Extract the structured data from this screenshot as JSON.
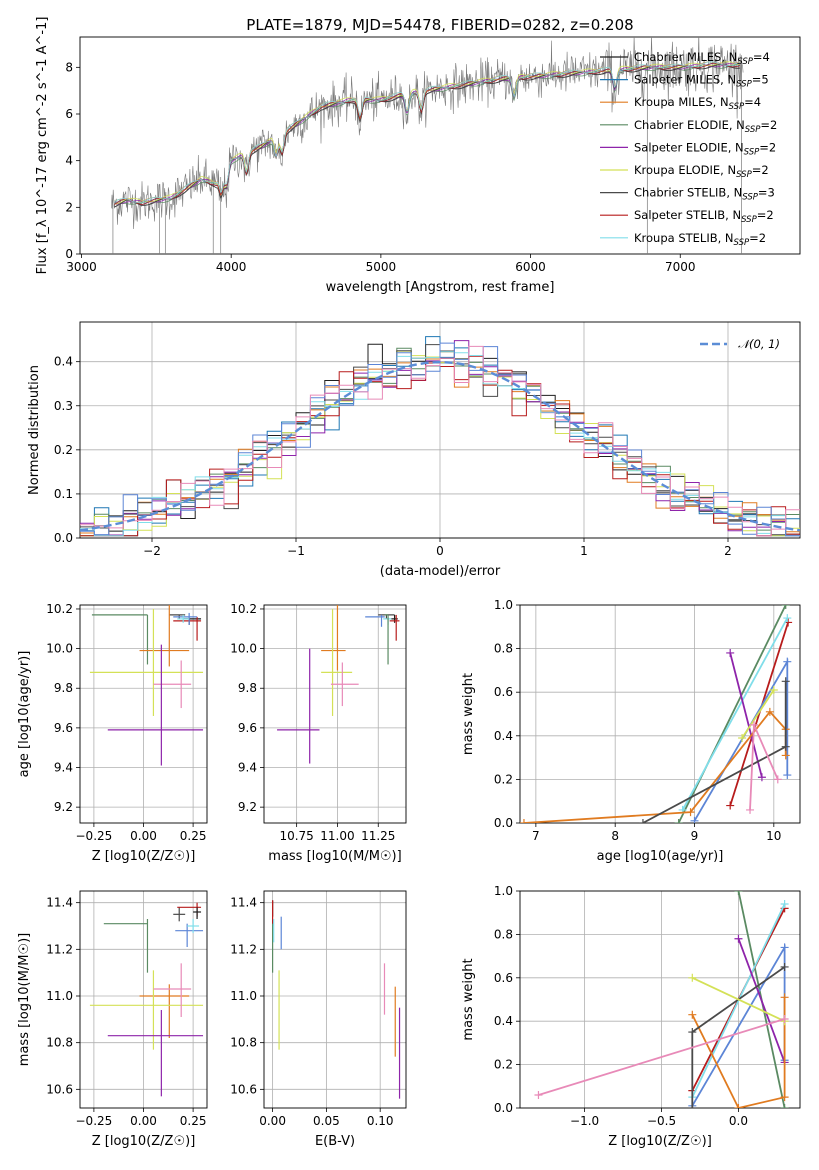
{
  "figure_title": "PLATE=1879, MJD=54478, FIBERID=0282, z=0.208",
  "colors": {
    "Chabrier MILES": "#1f1f1f",
    "Salpeter MILES": "#1f77b4",
    "Kroupa MILES": "#e07b20",
    "Chabrier ELODIE": "#5a8a62",
    "Salpeter ELODIE": "#8e24aa",
    "Kroupa ELODIE": "#d4e157",
    "Chabrier STELIB": "#4a4a4a",
    "Salpeter STELIB": "#b71c1c",
    "Kroupa STELIB": "#80deea",
    "extra1": "#5c85d6",
    "extra2": "#e88ab8",
    "normal": "#5b8dd6"
  },
  "chart_data": [
    {
      "type": "line",
      "id": "spectrum",
      "title": "PLATE=1879, MJD=54478, FIBERID=0282, z=0.208",
      "xlabel": "wavelength [Angstrom, rest frame]",
      "ylabel": "Flux [f_λ 10^-17 erg cm^-2 s^-1 A^-1]",
      "xlim": [
        2990,
        7800
      ],
      "ylim": [
        0,
        9.3
      ],
      "xticks": [
        3000,
        4000,
        5000,
        6000,
        7000
      ],
      "yticks": [
        0,
        2,
        4,
        6,
        8
      ],
      "continuum": {
        "x": [
          3200,
          3300,
          3400,
          3600,
          3800,
          3900,
          4000,
          4200,
          4400,
          4600,
          4800,
          5000,
          5200,
          5400,
          5600,
          5800,
          6000,
          6200,
          6400,
          6600,
          6800,
          7000,
          7200,
          7400
        ],
        "y": [
          2.1,
          2.3,
          2.2,
          2.4,
          3.2,
          3.0,
          4.0,
          4.6,
          5.4,
          6.3,
          6.6,
          6.6,
          6.9,
          7.1,
          7.3,
          7.5,
          7.6,
          7.7,
          7.8,
          7.9,
          8.0,
          8.0,
          8.1,
          8.1
        ]
      },
      "legend": [
        {
          "name": "Chabrier MILES, N_SSP=4",
          "color": "#1f1f1f"
        },
        {
          "name": "Salpeter MILES, N_SSP=5",
          "color": "#1f77b4"
        },
        {
          "name": "Kroupa MILES, N_SSP=4",
          "color": "#e07b20"
        },
        {
          "name": "Chabrier ELODIE, N_SSP=2",
          "color": "#5a8a62"
        },
        {
          "name": "Salpeter ELODIE, N_SSP=2",
          "color": "#8e24aa"
        },
        {
          "name": "Kroupa ELODIE, N_SSP=2",
          "color": "#d4e157"
        },
        {
          "name": "Chabrier STELIB, N_SSP=3",
          "color": "#4a4a4a"
        },
        {
          "name": "Salpeter STELIB, N_SSP=2",
          "color": "#b71c1c"
        },
        {
          "name": "Kroupa STELIB, N_SSP=2",
          "color": "#80deea"
        }
      ],
      "legend_placement": "right"
    },
    {
      "type": "bar",
      "id": "residual_hist",
      "xlabel": "(data-model)/error",
      "ylabel": "Normed distribution",
      "xlim": [
        -2.5,
        2.5
      ],
      "ylim": [
        0,
        0.49
      ],
      "xticks": [
        -2,
        -1,
        0,
        1,
        2
      ],
      "yticks": [
        0.0,
        0.1,
        0.2,
        0.3,
        0.4
      ],
      "grid": true,
      "bin_width": 0.1,
      "legend": [
        {
          "name": "N(0,1)",
          "style": "dashed",
          "color": "#5b8dd6"
        }
      ],
      "legend_placement": "top-right"
    },
    {
      "type": "scatter",
      "id": "age_vs_Z",
      "xlabel": "Z [log10(Z/Z☉)]",
      "ylabel": "age [log10(age/yr)]",
      "xlim": [
        -0.32,
        0.32
      ],
      "ylim": [
        9.12,
        10.22
      ],
      "xticks": [
        -0.25,
        0.0,
        0.25
      ],
      "yticks": [
        9.2,
        9.4,
        9.6,
        9.8,
        10.0,
        10.2
      ],
      "grid": true,
      "points": [
        {
          "x": 0.18,
          "y": 10.17,
          "xerr": [
            0.05,
            0.03
          ],
          "yerr": [
            0.02,
            0.0
          ],
          "color": "#4a4a4a"
        },
        {
          "x": 0.23,
          "y": 10.15,
          "xerr": [
            0.03,
            0.06
          ],
          "yerr": [
            0.03,
            0.0
          ],
          "color": "#1f1f1f"
        },
        {
          "x": 0.27,
          "y": 10.14,
          "xerr": [
            0.12,
            0.02
          ],
          "yerr": [
            0.1,
            0.02
          ],
          "color": "#b71c1c"
        },
        {
          "x": 0.23,
          "y": 10.16,
          "xerr": [
            0.08,
            0.04
          ],
          "yerr": [
            0.04,
            0.02
          ],
          "color": "#5c85d6"
        },
        {
          "x": 0.2,
          "y": 10.15,
          "xerr": [
            0.03,
            0.03
          ],
          "yerr": [
            0.02,
            0.02
          ],
          "color": "#80deea"
        },
        {
          "x": 0.02,
          "y": 10.17,
          "xerr": [
            0.28,
            0.0
          ],
          "yerr": [
            0.25,
            0.0
          ],
          "color": "#5a8a62"
        },
        {
          "x": 0.13,
          "y": 9.99,
          "xerr": [
            0.15,
            0.1
          ],
          "yerr": [
            0.08,
            0.28
          ],
          "color": "#e07b20"
        },
        {
          "x": 0.05,
          "y": 9.88,
          "xerr": [
            0.32,
            0.25
          ],
          "yerr": [
            0.22,
            0.32
          ],
          "color": "#d4e157"
        },
        {
          "x": 0.19,
          "y": 9.82,
          "xerr": [
            0.14,
            0.05
          ],
          "yerr": [
            0.12,
            0.12
          ],
          "color": "#e88ab8"
        },
        {
          "x": 0.09,
          "y": 9.59,
          "xerr": [
            0.27,
            0.21
          ],
          "yerr": [
            0.18,
            0.43
          ],
          "color": "#8e24aa"
        }
      ]
    },
    {
      "type": "scatter",
      "id": "age_vs_mass",
      "xlabel": "mass [log10(M/M☉)]",
      "ylabel": "",
      "xlim": [
        10.55,
        11.42
      ],
      "ylim": [
        9.12,
        10.22
      ],
      "xticks": [
        10.75,
        11.0,
        11.25
      ],
      "yticks": [
        9.2,
        9.4,
        9.6,
        9.8,
        10.0,
        10.2
      ],
      "grid": true,
      "points": [
        {
          "x": 11.3,
          "y": 10.17,
          "xerr": [
            0.05,
            0.05
          ],
          "yerr": [
            0.02,
            0.0
          ],
          "color": "#4a4a4a"
        },
        {
          "x": 11.35,
          "y": 10.15,
          "xerr": [
            0.02,
            0.02
          ],
          "yerr": [
            0.02,
            0.02
          ],
          "color": "#1f1f1f"
        },
        {
          "x": 11.36,
          "y": 10.14,
          "xerr": [
            0.04,
            0.02
          ],
          "yerr": [
            0.1,
            0.03
          ],
          "color": "#b71c1c"
        },
        {
          "x": 11.27,
          "y": 10.16,
          "xerr": [
            0.1,
            0.02
          ],
          "yerr": [
            0.05,
            0.01
          ],
          "color": "#5c85d6"
        },
        {
          "x": 11.31,
          "y": 10.15,
          "xerr": [
            0.03,
            0.02
          ],
          "yerr": [
            0.03,
            0.01
          ],
          "color": "#80deea"
        },
        {
          "x": 11.31,
          "y": 10.17,
          "xerr": [
            0.02,
            0.0
          ],
          "yerr": [
            0.25,
            0.0
          ],
          "color": "#5a8a62"
        },
        {
          "x": 11.0,
          "y": 9.99,
          "xerr": [
            0.1,
            0.05
          ],
          "yerr": [
            0.1,
            0.28
          ],
          "color": "#e07b20"
        },
        {
          "x": 10.97,
          "y": 9.88,
          "xerr": [
            0.07,
            0.12
          ],
          "yerr": [
            0.22,
            0.32
          ],
          "color": "#d4e157"
        },
        {
          "x": 11.03,
          "y": 9.82,
          "xerr": [
            0.07,
            0.1
          ],
          "yerr": [
            0.11,
            0.11
          ],
          "color": "#e88ab8"
        },
        {
          "x": 10.83,
          "y": 9.59,
          "xerr": [
            0.2,
            0.06
          ],
          "yerr": [
            0.17,
            0.41
          ],
          "color": "#8e24aa"
        }
      ]
    },
    {
      "type": "line",
      "id": "massweight_vs_age",
      "xlabel": "age [log10(age/yr)]",
      "ylabel": "mass weight",
      "xlim": [
        6.8,
        10.33
      ],
      "ylim": [
        0,
        1
      ],
      "xticks": [
        7,
        8,
        9,
        10
      ],
      "yticks": [
        0.0,
        0.2,
        0.4,
        0.6,
        0.8,
        1.0
      ],
      "grid": true,
      "series": [
        {
          "color": "#5a8a62",
          "x": [
            8.8,
            10.15
          ],
          "y": [
            0.0,
            1.0
          ]
        },
        {
          "color": "#b71c1c",
          "x": [
            9.45,
            10.18
          ],
          "y": [
            0.08,
            0.92
          ]
        },
        {
          "color": "#80deea",
          "x": [
            8.85,
            10.17
          ],
          "y": [
            0.06,
            0.94
          ]
        },
        {
          "color": "#5c85d6",
          "x": [
            9.0,
            10.17,
            10.17
          ],
          "y": [
            0.01,
            0.74,
            0.22
          ]
        },
        {
          "color": "#8e24aa",
          "x": [
            9.45,
            9.85
          ],
          "y": [
            0.78,
            0.21
          ]
        },
        {
          "color": "#e07b20",
          "x": [
            6.85,
            8.95,
            9.95,
            10.15,
            10.15
          ],
          "y": [
            0.0,
            0.05,
            0.51,
            0.43,
            0.31
          ]
        },
        {
          "color": "#4a4a4a",
          "x": [
            8.35,
            10.15,
            10.15
          ],
          "y": [
            0.0,
            0.35,
            0.65
          ]
        },
        {
          "color": "#d4e157",
          "x": [
            9.6,
            10.0
          ],
          "y": [
            0.39,
            0.61
          ]
        },
        {
          "color": "#e88ab8",
          "x": [
            9.7,
            9.75,
            10.05
          ],
          "y": [
            0.06,
            0.45,
            0.2
          ]
        }
      ]
    },
    {
      "type": "scatter",
      "id": "mass_vs_Z",
      "xlabel": "Z [log10(Z/Z☉)]",
      "ylabel": "mass [log10(M/M☉)]",
      "xlim": [
        -0.32,
        0.32
      ],
      "ylim": [
        10.52,
        11.45
      ],
      "xticks": [
        -0.25,
        0.0,
        0.25
      ],
      "yticks": [
        10.6,
        10.8,
        11.0,
        11.2,
        11.4
      ],
      "grid": true,
      "points": [
        {
          "x": 0.18,
          "y": 11.35,
          "xerr": [
            0.03,
            0.03
          ],
          "yerr": [
            0.03,
            0.03
          ],
          "color": "#4a4a4a"
        },
        {
          "x": 0.27,
          "y": 11.38,
          "xerr": [
            0.1,
            0.02
          ],
          "yerr": [
            0.04,
            0.02
          ],
          "color": "#b71c1c"
        },
        {
          "x": 0.27,
          "y": 11.36,
          "xerr": [
            0.02,
            0.02
          ],
          "yerr": [
            0.03,
            0.02
          ],
          "color": "#1f1f1f"
        },
        {
          "x": 0.22,
          "y": 11.28,
          "xerr": [
            0.06,
            0.08
          ],
          "yerr": [
            0.07,
            0.03
          ],
          "color": "#5c85d6"
        },
        {
          "x": 0.25,
          "y": 11.3,
          "xerr": [
            0.03,
            0.03
          ],
          "yerr": [
            0.03,
            0.03
          ],
          "color": "#80deea"
        },
        {
          "x": 0.02,
          "y": 11.31,
          "xerr": [
            0.22,
            0.0
          ],
          "yerr": [
            0.21,
            0.02
          ],
          "color": "#5a8a62"
        },
        {
          "x": 0.13,
          "y": 11.0,
          "xerr": [
            0.15,
            0.1
          ],
          "yerr": [
            0.18,
            0.05
          ],
          "color": "#e07b20"
        },
        {
          "x": 0.05,
          "y": 10.96,
          "xerr": [
            0.32,
            0.25
          ],
          "yerr": [
            0.19,
            0.15
          ],
          "color": "#d4e157"
        },
        {
          "x": 0.19,
          "y": 11.03,
          "xerr": [
            0.14,
            0.05
          ],
          "yerr": [
            0.12,
            0.11
          ],
          "color": "#e88ab8"
        },
        {
          "x": 0.09,
          "y": 10.83,
          "xerr": [
            0.27,
            0.21
          ],
          "yerr": [
            0.26,
            0.11
          ],
          "color": "#8e24aa"
        }
      ]
    },
    {
      "type": "scatter",
      "id": "mass_vs_ebv",
      "xlabel": "E(B-V)",
      "ylabel": "",
      "xlim": [
        -0.008,
        0.124
      ],
      "ylim": [
        10.52,
        11.45
      ],
      "xticks": [
        0.0,
        0.05,
        0.1
      ],
      "yticks": [
        10.6,
        10.8,
        11.0,
        11.2,
        11.4
      ],
      "grid": true,
      "points": [
        {
          "x": 0.0,
          "y": 11.36,
          "yerr": [
            0.02,
            0.05
          ],
          "color": "#1f1f1f"
        },
        {
          "x": 0.0,
          "y": 11.35,
          "yerr": [
            0.05,
            0.06
          ],
          "color": "#b71c1c"
        },
        {
          "x": 0.0,
          "y": 11.31,
          "yerr": [
            0.21,
            0.0
          ],
          "color": "#5a8a62"
        },
        {
          "x": 0.008,
          "y": 11.27,
          "yerr": [
            0.07,
            0.07
          ],
          "color": "#5c85d6"
        },
        {
          "x": 0.001,
          "y": 11.28,
          "yerr": [
            0.05,
            0.05
          ],
          "color": "#80deea"
        },
        {
          "x": 0.006,
          "y": 10.95,
          "yerr": [
            0.18,
            0.16
          ],
          "color": "#d4e157"
        },
        {
          "x": 0.104,
          "y": 11.03,
          "yerr": [
            0.11,
            0.11
          ],
          "color": "#e88ab8"
        },
        {
          "x": 0.114,
          "y": 10.9,
          "yerr": [
            0.16,
            0.14
          ],
          "color": "#e07b20"
        },
        {
          "x": 0.118,
          "y": 10.8,
          "yerr": [
            0.24,
            0.15
          ],
          "color": "#8e24aa"
        }
      ]
    },
    {
      "type": "line",
      "id": "massweight_vs_Z",
      "xlabel": "Z [log10(Z/Z☉)]",
      "ylabel": "mass weight",
      "xlim": [
        -1.42,
        0.4
      ],
      "ylim": [
        0,
        1
      ],
      "xticks": [
        -1.0,
        -0.5,
        0.0
      ],
      "yticks": [
        0.0,
        0.2,
        0.4,
        0.6,
        0.8,
        1.0
      ],
      "grid": true,
      "series": [
        {
          "color": "#5a8a62",
          "x": [
            0.0,
            0.3
          ],
          "y": [
            1.0,
            0.0
          ]
        },
        {
          "color": "#b71c1c",
          "x": [
            -0.3,
            0.3
          ],
          "y": [
            0.08,
            0.92
          ]
        },
        {
          "color": "#80deea",
          "x": [
            -0.3,
            0.3
          ],
          "y": [
            0.05,
            0.94
          ]
        },
        {
          "color": "#5c85d6",
          "x": [
            -0.3,
            0.3,
            0.3
          ],
          "y": [
            0.01,
            0.74,
            0.22
          ]
        },
        {
          "color": "#8e24aa",
          "x": [
            0.0,
            0.3
          ],
          "y": [
            0.78,
            0.21
          ]
        },
        {
          "color": "#e07b20",
          "x": [
            -0.3,
            0.0,
            0.3,
            0.3
          ],
          "y": [
            0.43,
            0.0,
            0.05,
            0.51
          ]
        },
        {
          "color": "#4a4a4a",
          "x": [
            -0.3,
            -0.3,
            0.3
          ],
          "y": [
            0.0,
            0.35,
            0.65
          ]
        },
        {
          "color": "#d4e157",
          "x": [
            -0.3,
            0.3
          ],
          "y": [
            0.6,
            0.4
          ]
        },
        {
          "color": "#e88ab8",
          "x": [
            -1.3,
            0.3
          ],
          "y": [
            0.06,
            0.41
          ]
        }
      ]
    }
  ]
}
